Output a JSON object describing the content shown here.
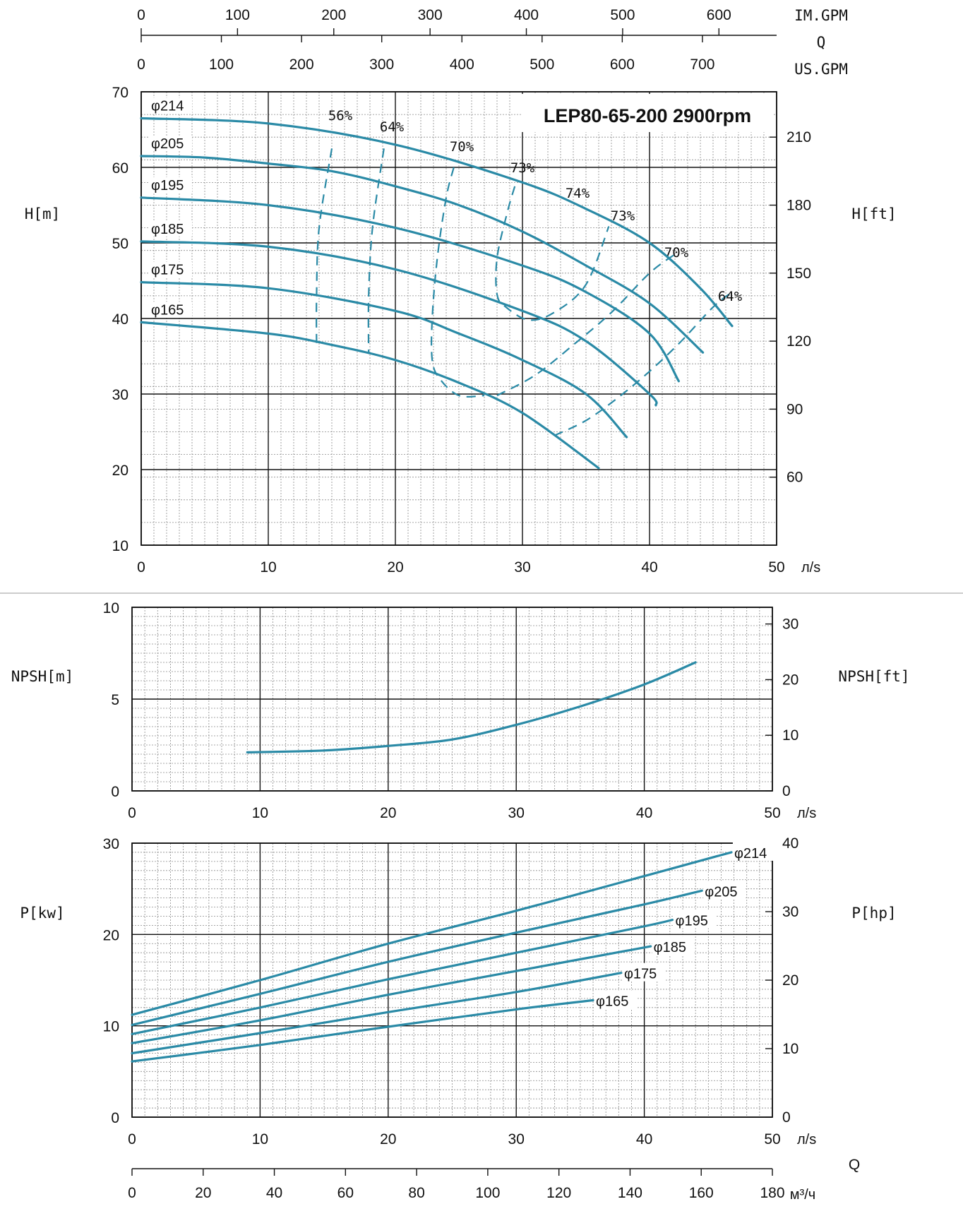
{
  "chart_data": [
    {
      "type": "line",
      "title": "LEP80-65-200 2900rpm",
      "xlabel": "л/s",
      "ylabel": "H[m]",
      "y2label": "H[ft]",
      "xlim": [
        0,
        50
      ],
      "ylim": [
        10,
        70
      ],
      "y2lim": [
        30,
        230
      ],
      "xticks": [
        "0",
        "10",
        "20",
        "30",
        "40",
        "50"
      ],
      "yticks": [
        "10",
        "20",
        "30",
        "40",
        "50",
        "60",
        "70"
      ],
      "y2ticks": [
        "60",
        "90",
        "120",
        "150",
        "180",
        "210"
      ],
      "top_axes": {
        "q_label": "Q",
        "im_gpm": {
          "label": "IM.GPM",
          "ticks": [
            "0",
            "100",
            "200",
            "300",
            "400",
            "500",
            "600"
          ]
        },
        "us_gpm": {
          "label": "US.GPM",
          "ticks": [
            "0",
            "100",
            "200",
            "300",
            "400",
            "500",
            "600",
            "700"
          ]
        }
      },
      "grid": true,
      "series": [
        {
          "name": "φ214",
          "x": [
            0,
            10,
            20,
            30,
            35,
            40,
            44,
            46.5
          ],
          "y": [
            66.5,
            65.8,
            63.0,
            58.0,
            54.5,
            50.0,
            44.0,
            39.0
          ]
        },
        {
          "name": "φ205",
          "x": [
            0,
            5,
            10,
            15,
            20,
            25,
            30,
            35,
            40,
            44.2
          ],
          "y": [
            61.5,
            61.3,
            60.5,
            59.5,
            57.5,
            55.0,
            51.5,
            47.0,
            42.0,
            35.5
          ]
        },
        {
          "name": "φ195",
          "x": [
            0,
            10,
            20,
            30,
            35,
            40,
            42.3
          ],
          "y": [
            56.0,
            55.0,
            52.0,
            47.0,
            43.5,
            38.0,
            31.7
          ]
        },
        {
          "name": "φ185",
          "x": [
            0,
            10,
            20,
            30,
            35,
            40,
            40.5
          ],
          "y": [
            50.2,
            49.5,
            46.5,
            41.0,
            37.0,
            30.0,
            28.5
          ]
        },
        {
          "name": "φ175",
          "x": [
            0,
            10,
            20,
            25,
            30,
            35,
            38.2
          ],
          "y": [
            44.8,
            44.0,
            41.0,
            38.0,
            34.5,
            30.0,
            24.3
          ]
        },
        {
          "name": "φ165",
          "x": [
            0,
            10,
            15,
            20,
            25,
            30,
            36
          ],
          "y": [
            39.5,
            38.0,
            36.5,
            34.5,
            31.5,
            27.5,
            20.2
          ]
        }
      ],
      "efficiency_contours": [
        {
          "label": "56%",
          "x": [
            15.0,
            14.0,
            13.8,
            13.8
          ],
          "y": [
            62.5,
            52.0,
            43.0,
            36.5
          ]
        },
        {
          "label": "64%",
          "x": [
            19.1,
            18.2,
            17.9,
            17.9
          ],
          "y": [
            62.5,
            52.0,
            43.0,
            35.3
          ]
        },
        {
          "label": "70%",
          "x": [
            24.6,
            24.0,
            23.3,
            22.9,
            22.9,
            23.5,
            25.0,
            27.0
          ],
          "y": [
            60.0,
            56.0,
            48.0,
            40.0,
            34.5,
            32.0,
            29.8,
            29.8
          ]
        },
        {
          "label": "73%",
          "x": [
            29.4,
            28.8,
            28.0,
            28.0,
            28.7,
            30.5,
            32.5,
            35.0,
            36.8
          ],
          "y": [
            57.5,
            54.0,
            48.0,
            43.2,
            41.5,
            39.8,
            40.8,
            44.5,
            52.2
          ]
        },
        {
          "label": "73%",
          "x": [
            28.0,
            31.0,
            34.0,
            37.0,
            40.0,
            42.0
          ],
          "y": [
            29.8,
            32.5,
            36.5,
            40.8,
            46.0,
            48.5
          ]
        },
        {
          "label": "64%",
          "x": [
            32.5,
            35.0,
            37.5,
            40.0,
            42.5,
            45.0,
            46.5
          ],
          "y": [
            24.5,
            26.5,
            29.5,
            33.0,
            37.0,
            41.5,
            43.5
          ]
        }
      ],
      "efficiency_labels": [
        "56%",
        "64%",
        "70%",
        "73%",
        "74%",
        "73%",
        "70%",
        "64%"
      ]
    },
    {
      "type": "line",
      "title": "",
      "xlabel": "л/s",
      "ylabel": "NPSH[m]",
      "y2label": "NPSH[ft]",
      "xlim": [
        0,
        50
      ],
      "ylim": [
        0,
        10
      ],
      "y2lim": [
        0,
        33
      ],
      "xticks": [
        "0",
        "10",
        "20",
        "30",
        "40",
        "50"
      ],
      "yticks": [
        "0",
        "5",
        "10"
      ],
      "y2ticks": [
        "0",
        "10",
        "20",
        "30"
      ],
      "grid": true,
      "series": [
        {
          "name": "",
          "x": [
            9.0,
            15,
            20,
            25,
            30,
            35,
            40,
            44
          ],
          "y": [
            2.1,
            2.2,
            2.45,
            2.8,
            3.6,
            4.6,
            5.8,
            7.0
          ]
        }
      ]
    },
    {
      "type": "line",
      "title": "",
      "xlabel": "л/s",
      "ylabel": "P[kw]",
      "y2label": "P[hp]",
      "xlim": [
        0,
        50
      ],
      "ylim": [
        0,
        30
      ],
      "y2lim": [
        0,
        40
      ],
      "xticks": [
        "0",
        "10",
        "20",
        "30",
        "40",
        "50"
      ],
      "yticks": [
        "0",
        "10",
        "20",
        "30"
      ],
      "y2ticks": [
        "0",
        "10",
        "20",
        "30",
        "40"
      ],
      "bottom_axis": {
        "label": "Q",
        "unit": "м³/ч",
        "ticks": [
          "0",
          "20",
          "40",
          "60",
          "80",
          "100",
          "120",
          "140",
          "160",
          "180"
        ]
      },
      "grid": true,
      "series": [
        {
          "name": "φ214",
          "x": [
            0,
            10,
            20,
            30,
            40,
            46.8
          ],
          "y": [
            11.2,
            15.0,
            19.0,
            22.6,
            26.4,
            29.0
          ]
        },
        {
          "name": "φ205",
          "x": [
            0,
            10,
            20,
            30,
            40,
            44.5
          ],
          "y": [
            10.1,
            13.5,
            17.0,
            20.2,
            23.3,
            24.8
          ]
        },
        {
          "name": "φ195",
          "x": [
            0,
            10,
            20,
            30,
            40,
            42.2
          ],
          "y": [
            9.1,
            12.0,
            15.1,
            18.0,
            20.9,
            21.6
          ]
        },
        {
          "name": "φ185",
          "x": [
            0,
            10,
            20,
            30,
            40.5
          ],
          "y": [
            8.1,
            10.6,
            13.4,
            16.0,
            18.7
          ]
        },
        {
          "name": "φ175",
          "x": [
            0,
            10,
            20,
            30,
            38.2
          ],
          "y": [
            7.0,
            9.2,
            11.5,
            13.7,
            15.8
          ]
        },
        {
          "name": "φ165",
          "x": [
            0,
            10,
            20,
            30,
            36
          ],
          "y": [
            6.1,
            7.9,
            9.9,
            11.8,
            12.8
          ]
        }
      ]
    }
  ],
  "colors": {
    "curve": "#2a8aa6",
    "grid_major": "#111111",
    "grid_minor": "#8a8a8a",
    "text": "#111111"
  }
}
